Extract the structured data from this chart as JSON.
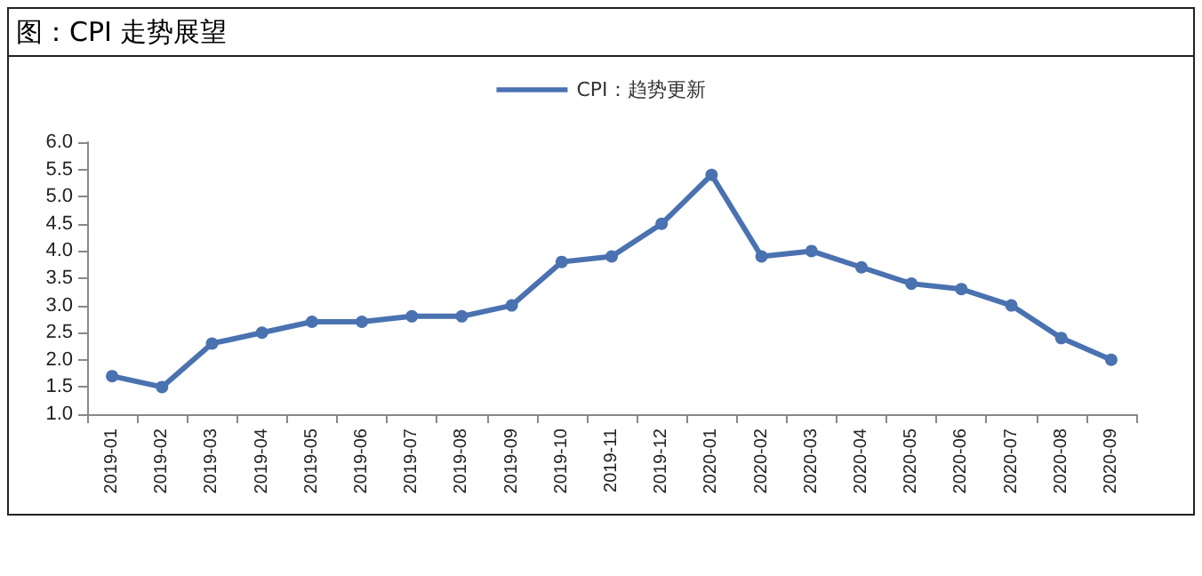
{
  "chart_data": {
    "type": "line",
    "title": "图：CPI 走势展望",
    "categories": [
      "2019-01",
      "2019-02",
      "2019-03",
      "2019-04",
      "2019-05",
      "2019-06",
      "2019-07",
      "2019-08",
      "2019-09",
      "2019-10",
      "2019-11",
      "2019-12",
      "2020-01",
      "2020-02",
      "2020-03",
      "2020-04",
      "2020-05",
      "2020-06",
      "2020-07",
      "2020-08",
      "2020-09"
    ],
    "series": [
      {
        "name": "CPI：趋势更新",
        "color": "#4a72b0",
        "values": [
          1.7,
          1.5,
          2.3,
          2.5,
          2.7,
          2.7,
          2.8,
          2.8,
          3.0,
          3.8,
          3.9,
          4.5,
          5.4,
          3.9,
          4.0,
          3.7,
          3.4,
          3.3,
          3.0,
          2.4,
          2.0
        ]
      }
    ],
    "ylim": [
      1.0,
      6.0
    ],
    "yticks": [
      {
        "value": 1.0,
        "label": "1.0"
      },
      {
        "value": 1.5,
        "label": "1.5"
      },
      {
        "value": 2.0,
        "label": "2.0"
      },
      {
        "value": 2.5,
        "label": "2.5"
      },
      {
        "value": 3.0,
        "label": "3.0"
      },
      {
        "value": 3.5,
        "label": "3.5"
      },
      {
        "value": 4.0,
        "label": "4.0"
      },
      {
        "value": 4.5,
        "label": "4.5"
      },
      {
        "value": 5.0,
        "label": "5.0"
      },
      {
        "value": 5.5,
        "label": "5.5"
      },
      {
        "value": 6.0,
        "label": "6.0"
      }
    ],
    "grid": false,
    "legend": "top",
    "marker": "circle",
    "line_style": "solid"
  }
}
